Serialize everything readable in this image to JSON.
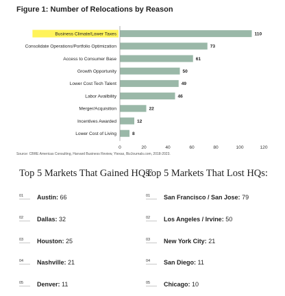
{
  "figure_title": "Figure 1: Number of Relocations by Reason",
  "source": "Source: CBRE Americas Consulting, Harvard Business Review, Ytexas, BizJournals.com, 2018-2023.",
  "chart_data": {
    "type": "bar",
    "orientation": "horizontal",
    "title": "Figure 1: Number of Relocations by Reason",
    "categories": [
      "Business Climate/Lower Taxes",
      "Consolidate Operations/Portfolio Optimization",
      "Access to Consumer Base",
      "Growth Opportunity",
      "Lower Cost Tech Talent",
      "Labor Availbility",
      "Merger/Acquisition",
      "Incentives Awarded",
      "Lower Cost of Living"
    ],
    "values": [
      110,
      73,
      61,
      50,
      49,
      46,
      22,
      12,
      8
    ],
    "xlim": [
      0,
      120
    ],
    "xticks": [
      0,
      20,
      40,
      60,
      80,
      100,
      120
    ],
    "grid": false,
    "legend": "none",
    "highlighted_category": "Business Climate/Lower Taxes",
    "colors": {
      "bar": "#9ab8a8",
      "highlight": "#fff35a",
      "axis": "#999999"
    }
  },
  "gained": {
    "title": "Top 5 Markets That Gained HQs:",
    "items": [
      {
        "rank": "01",
        "name": "Austin:",
        "count": "66"
      },
      {
        "rank": "02",
        "name": "Dallas:",
        "count": "32"
      },
      {
        "rank": "03",
        "name": "Houston:",
        "count": "25"
      },
      {
        "rank": "04",
        "name": "Nashville:",
        "count": "21"
      },
      {
        "rank": "05",
        "name": "Denver:",
        "count": "11"
      }
    ]
  },
  "lost": {
    "title": "Top 5 Markets That Lost HQs:",
    "items": [
      {
        "rank": "01",
        "name": "San Francisco / San Jose:",
        "count": "79"
      },
      {
        "rank": "02",
        "name": "Los Angeles / Irvine:",
        "count": "50"
      },
      {
        "rank": "03",
        "name": "New York City:",
        "count": "21"
      },
      {
        "rank": "04",
        "name": "San Diego:",
        "count": "11"
      },
      {
        "rank": "05",
        "name": "Chicago:",
        "count": "10"
      }
    ]
  }
}
